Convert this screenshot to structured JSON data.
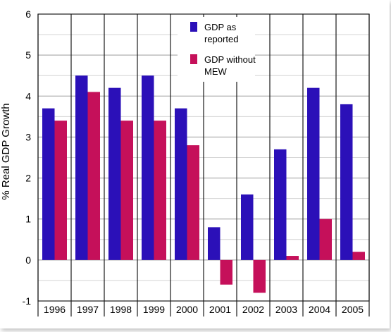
{
  "chart_data": {
    "type": "bar",
    "categories": [
      "1996",
      "1997",
      "1998",
      "1999",
      "2000",
      "2001",
      "2002",
      "2003",
      "2004",
      "2005"
    ],
    "series": [
      {
        "name": "GDP as reported",
        "legend_lines": [
          "GDP as",
          "reported"
        ],
        "color": "#2b10b8",
        "values": [
          3.7,
          4.5,
          4.2,
          4.5,
          3.7,
          0.8,
          1.6,
          2.7,
          4.2,
          3.8
        ]
      },
      {
        "name": "GDP without MEW",
        "legend_lines": [
          "GDP without",
          "MEW"
        ],
        "color": "#c5105a",
        "values": [
          3.4,
          4.1,
          3.4,
          3.4,
          2.8,
          -0.6,
          -0.8,
          0.1,
          1.0,
          0.2
        ]
      }
    ],
    "ylabel": "% Real GDP Growth",
    "ylim": [
      -1,
      6
    ],
    "yticks": [
      "-1",
      "0",
      "1",
      "2",
      "3",
      "4",
      "5",
      "6"
    ],
    "grid": true,
    "legend_position": "top-center"
  }
}
